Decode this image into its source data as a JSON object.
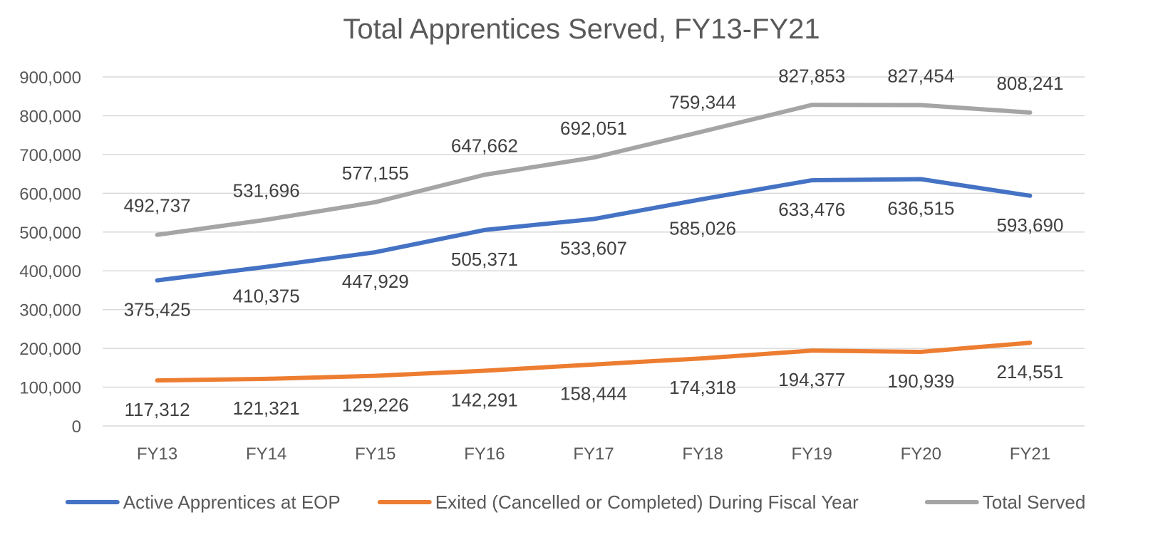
{
  "chart_data": {
    "type": "line",
    "title": "Total Apprentices Served, FY13-FY21",
    "xlabel": "",
    "ylabel": "",
    "ylim": [
      0,
      900000
    ],
    "y_ticks": [
      0,
      100000,
      200000,
      300000,
      400000,
      500000,
      600000,
      700000,
      800000,
      900000
    ],
    "y_tick_labels": [
      "0",
      "100,000",
      "200,000",
      "300,000",
      "400,000",
      "500,000",
      "600,000",
      "700,000",
      "800,000",
      "900,000"
    ],
    "grid": true,
    "legend_position": "bottom",
    "categories": [
      "FY13",
      "FY14",
      "FY15",
      "FY16",
      "FY17",
      "FY18",
      "FY19",
      "FY20",
      "FY21"
    ],
    "series": [
      {
        "name": "Active Apprentices at EOP",
        "color": "#4472c4",
        "label_position": "below",
        "values": [
          375425,
          410375,
          447929,
          505371,
          533607,
          585026,
          633476,
          636515,
          593690
        ],
        "labels": [
          "375,425",
          "410,375",
          "447,929",
          "505,371",
          "533,607",
          "585,026",
          "633,476",
          "636,515",
          "593,690"
        ]
      },
      {
        "name": "Exited (Cancelled or Completed) During Fiscal Year",
        "color": "#ed7d31",
        "label_position": "below",
        "values": [
          117312,
          121321,
          129226,
          142291,
          158444,
          174318,
          194377,
          190939,
          214551
        ],
        "labels": [
          "117,312",
          "121,321",
          "129,226",
          "142,291",
          "158,444",
          "174,318",
          "194,377",
          "190,939",
          "214,551"
        ]
      },
      {
        "name": "Total Served",
        "color": "#a5a5a5",
        "label_position": "above",
        "values": [
          492737,
          531696,
          577155,
          647662,
          692051,
          759344,
          827853,
          827454,
          808241
        ],
        "labels": [
          "492,737",
          "531,696",
          "577,155",
          "647,662",
          "692,051",
          "759,344",
          "827,853",
          "827,454",
          "808,241"
        ]
      }
    ]
  }
}
